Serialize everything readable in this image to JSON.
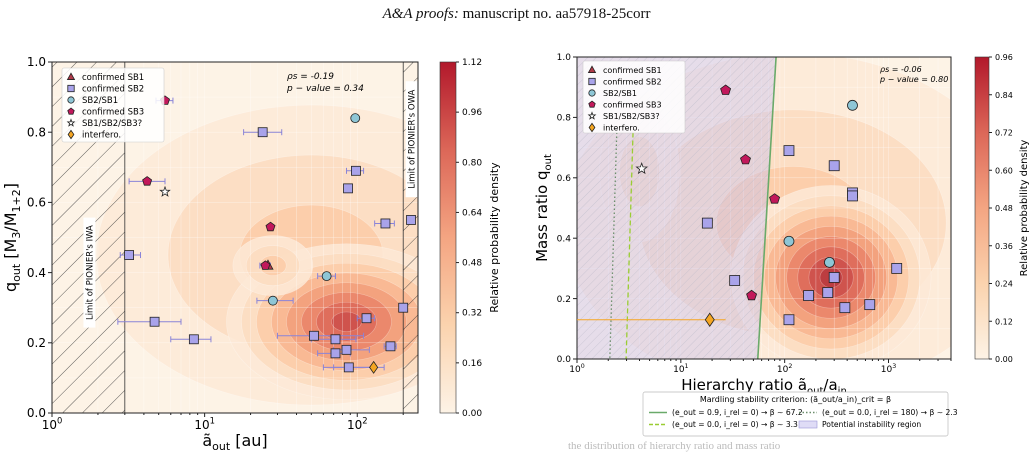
{
  "header": {
    "journal": "A&A proofs:",
    "manuscript": "manuscript no. aa57918-25corr"
  },
  "caption_fragment": "the distribution of hierarchy ratio and mass ratio",
  "colors": {
    "low": "#fdeedd",
    "high": "#b2182b",
    "sb2": "#a9a3ea",
    "sb1": "#8ec6d6",
    "sb3": "#c2185b",
    "conf_sb1": "#b03a48",
    "interf": "#f5a623",
    "wall": "#6aaa6a",
    "dashed": "#9acd32",
    "dotted": "#6b8e6b"
  },
  "chart_data": [
    {
      "type": "scatter",
      "xlabel": "ã_out [au]",
      "ylabel": "q_out [M_3/M_1+2]",
      "xscale": "log",
      "xlim": [
        1,
        250
      ],
      "ylim": [
        0,
        1.0
      ],
      "xticks": [
        "10^0",
        "10^1",
        "10^2"
      ],
      "yticks": [
        "0.0",
        "0.2",
        "0.4",
        "0.6",
        "0.8",
        "1.0"
      ],
      "stats": [
        "ρs = -0.19",
        "p − value = 0.34"
      ],
      "iwa_label": "Limit of PIONIER's IWA",
      "owa_label": "Limit of PIONIER's OWA",
      "iwa_x": 3,
      "owa_x": 200,
      "colorbar": {
        "label": "Relative probability density",
        "ticks": [
          "0.00",
          "0.16",
          "0.32",
          "0.48",
          "0.64",
          "0.80",
          "0.96",
          "1.12"
        ],
        "max": 1.12
      },
      "legend": [
        "confirmed SB1",
        "confirmed SB2",
        "SB2/SB1",
        "confirmed SB3",
        "SB1/SB2/SB3?",
        "interfero."
      ],
      "series": [
        {
          "name": "confirmed SB1",
          "marker": "triangle",
          "points": [
            [
              26,
              0.42
            ]
          ]
        },
        {
          "name": "confirmed SB2",
          "marker": "square",
          "points": [
            [
              24,
              0.8
            ],
            [
              3.2,
              0.45
            ],
            [
              4.7,
              0.26
            ],
            [
              8.5,
              0.21
            ],
            [
              98,
              0.69
            ],
            [
              87,
              0.64
            ],
            [
              153,
              0.54
            ],
            [
              225,
              0.55
            ],
            [
              115,
              0.27
            ],
            [
              200,
              0.3
            ],
            [
              52,
              0.22
            ],
            [
              72,
              0.21
            ],
            [
              72,
              0.17
            ],
            [
              85,
              0.18
            ],
            [
              88,
              0.13
            ],
            [
              165,
              0.19
            ]
          ]
        },
        {
          "name": "SB2/SB1",
          "marker": "circle",
          "points": [
            [
              97,
              0.84
            ],
            [
              63,
              0.39
            ],
            [
              28,
              0.32
            ]
          ]
        },
        {
          "name": "confirmed SB3",
          "marker": "pentagon",
          "points": [
            [
              5.5,
              0.89
            ],
            [
              4.2,
              0.66
            ],
            [
              27,
              0.53
            ],
            [
              25,
              0.42
            ]
          ]
        },
        {
          "name": "SB1/SB2/SB3?",
          "marker": "star",
          "points": [
            [
              5.5,
              0.63
            ]
          ]
        },
        {
          "name": "interfero.",
          "marker": "diamond",
          "points": [
            [
              128,
              0.13
            ]
          ]
        }
      ]
    },
    {
      "type": "scatter",
      "xlabel": "Hierarchy ratio ã_out/a_in",
      "ylabel": "Mass ratio q_out",
      "xscale": "log",
      "xlim": [
        1,
        4000
      ],
      "ylim": [
        0,
        1.0
      ],
      "xticks": [
        "10^0",
        "10^1",
        "10^2",
        "10^3"
      ],
      "yticks": [
        "0.0",
        "0.2",
        "0.4",
        "0.6",
        "0.8",
        "1.0"
      ],
      "stats": [
        "ρs = -0.06",
        "p − value = 0.80"
      ],
      "colorbar": {
        "label": "Relative probability density",
        "ticks": [
          "0.00",
          "0.12",
          "0.24",
          "0.36",
          "0.48",
          "0.60",
          "0.72",
          "0.84",
          "0.96"
        ],
        "max": 0.96
      },
      "legend": [
        "confirmed SB1",
        "confirmed SB2",
        "SB2/SB1",
        "confirmed SB3",
        "SB1/SB2/SB3?",
        "interfero."
      ],
      "criterion_title": "Mardling stability criterion: (ã_out/a_in)_crit = β",
      "criteria": [
        {
          "label": "(e_out = 0.9, i_rel = 0) → β ∼ 67.2",
          "beta": 67.2,
          "style": "solid"
        },
        {
          "label": "(e_out = 0.0, i_rel = 180) → β ∼ 2.3",
          "beta": 2.3,
          "style": "dotted"
        },
        {
          "label": "(e_out = 0.0, i_rel = 0) → β ∼ 3.3",
          "beta": 3.3,
          "style": "dashed"
        },
        {
          "label": "Potential instability region",
          "style": "region"
        }
      ],
      "series": [
        {
          "name": "confirmed SB1",
          "marker": "triangle",
          "points": []
        },
        {
          "name": "confirmed SB2",
          "marker": "square",
          "points": [
            [
              110,
              0.69
            ],
            [
              300,
              0.64
            ],
            [
              450,
              0.55
            ],
            [
              450,
              0.54
            ],
            [
              18,
              0.45
            ],
            [
              33,
              0.26
            ],
            [
              300,
              0.27
            ],
            [
              1200,
              0.3
            ],
            [
              170,
              0.21
            ],
            [
              260,
              0.22
            ],
            [
              380,
              0.17
            ],
            [
              660,
              0.18
            ],
            [
              110,
              0.13
            ]
          ]
        },
        {
          "name": "SB2/SB1",
          "marker": "circle",
          "points": [
            [
              450,
              0.84
            ],
            [
              110,
              0.39
            ],
            [
              270,
              0.32
            ]
          ]
        },
        {
          "name": "confirmed SB3",
          "marker": "pentagon",
          "points": [
            [
              27,
              0.89
            ],
            [
              42,
              0.66
            ],
            [
              80,
              0.53
            ],
            [
              48,
              0.21
            ]
          ]
        },
        {
          "name": "SB1/SB2/SB3?",
          "marker": "star",
          "points": [
            [
              4.2,
              0.63
            ]
          ]
        },
        {
          "name": "interfero.",
          "marker": "diamond",
          "points": [
            [
              19,
              0.13
            ]
          ]
        }
      ]
    }
  ]
}
